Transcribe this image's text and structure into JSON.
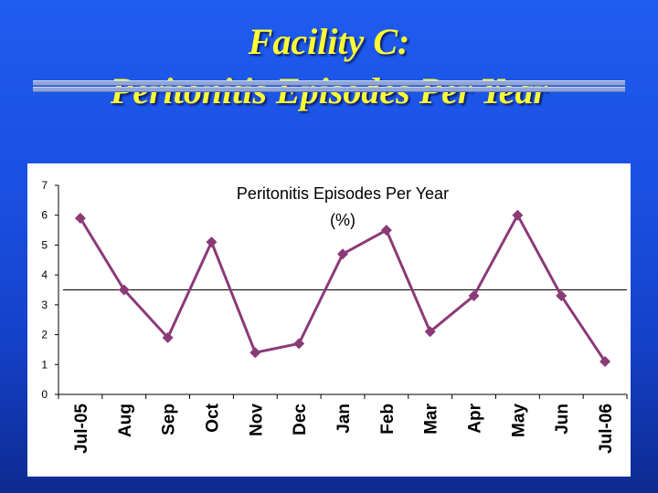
{
  "slide": {
    "title_line1": "Facility C:",
    "title_line2": "Peritonitis Episodes Per Year"
  },
  "colors": {
    "background": "#1a4fe0",
    "title": "#ffff33",
    "series": "#8b3a78",
    "reference_line": "#000000"
  },
  "chart_data": {
    "type": "line",
    "title": "Peritonitis Episodes Per Year",
    "subtitle": "(%)",
    "categories": [
      "Jul-05",
      "Aug",
      "Sep",
      "Oct",
      "Nov",
      "Dec",
      "Jan",
      "Feb",
      "Mar",
      "Apr",
      "May",
      "Jun",
      "Jul-06"
    ],
    "series": [
      {
        "values": [
          5.9,
          3.5,
          1.9,
          5.1,
          1.4,
          1.7,
          4.7,
          5.5,
          2.1,
          3.3,
          6.0,
          3.3,
          1.1
        ]
      }
    ],
    "reference_line": 3.5,
    "ylim": [
      0,
      7
    ],
    "yticks": [
      "0",
      "1",
      "2",
      "3",
      "4",
      "5",
      "6",
      "7"
    ],
    "marker": "diamond",
    "grid": false,
    "legend": "none"
  }
}
